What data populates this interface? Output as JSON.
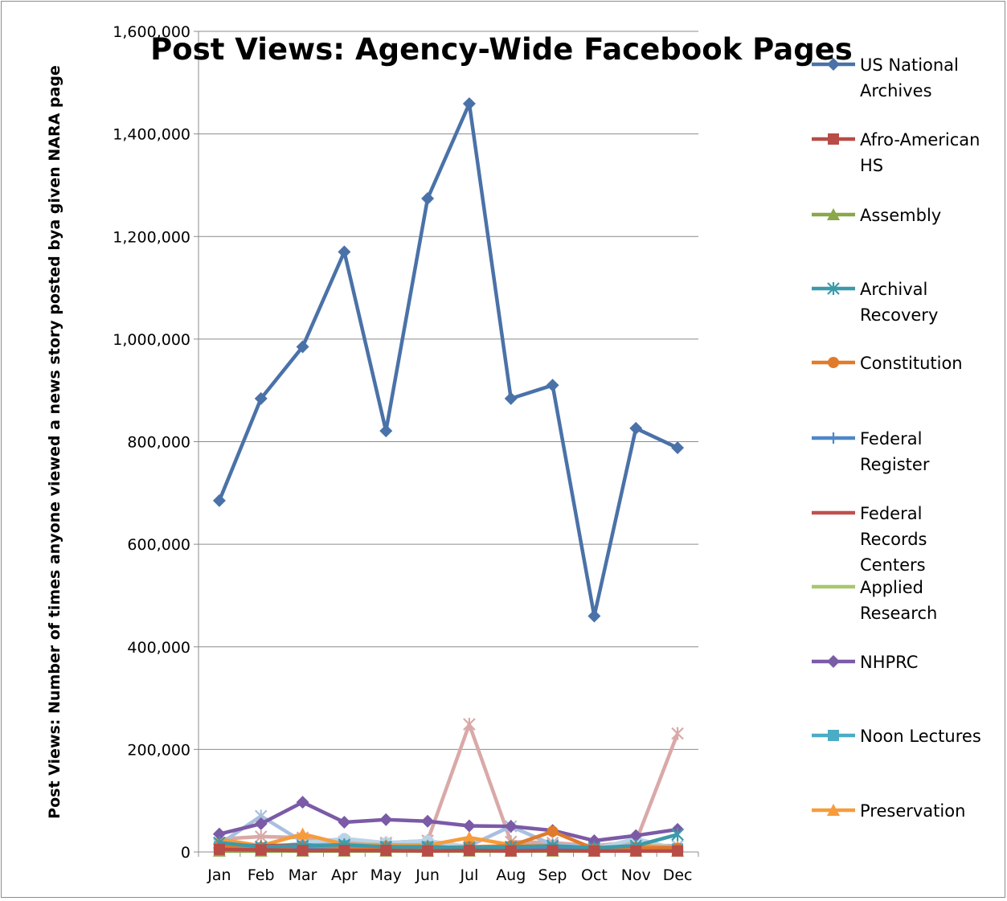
{
  "chart_data": {
    "type": "line",
    "title": "Post Views: Agency-Wide Facebook Pages",
    "ylabel": "Post Views: Number of times anyone viewed a news story posted bya given NARA page",
    "xlabel": "",
    "categories": [
      "Jan",
      "Feb",
      "Mar",
      "Apr",
      "May",
      "Jun",
      "Jul",
      "Aug",
      "Sep",
      "Oct",
      "Nov",
      "Dec"
    ],
    "ylim": [
      0,
      1600000
    ],
    "yticks": [
      0,
      200000,
      400000,
      600000,
      800000,
      1000000,
      1200000,
      1400000,
      1600000
    ],
    "ytick_labels": [
      "0",
      "200,000",
      "400,000",
      "600,000",
      "800,000",
      "1,000,000",
      "1,200,000",
      "1,400,000",
      "1,600,000"
    ],
    "grid": true,
    "legend_position": "right",
    "series": [
      {
        "name": "US National Archives",
        "color": "#4a72a8",
        "marker": "diamond",
        "values": [
          685000,
          884000,
          985000,
          1170000,
          821000,
          1274000,
          1459000,
          884000,
          910000,
          460000,
          826000,
          788000
        ]
      },
      {
        "name": "Afro-American HS",
        "color": "#b84c47",
        "marker": "square",
        "values": [
          5000,
          4000,
          3000,
          3000,
          3000,
          2000,
          3000,
          2000,
          3000,
          2000,
          2000,
          2000
        ]
      },
      {
        "name": "Assembly",
        "color": "#8aa74a",
        "marker": "triangle",
        "values": [
          2000,
          2000,
          2000,
          2000,
          2000,
          2000,
          2000,
          2000,
          2000,
          2000,
          2000,
          2000
        ]
      },
      {
        "name": "Archival Recovery",
        "color": "#3b9aaa",
        "marker": "star",
        "values": [
          18000,
          10000,
          12000,
          14000,
          10000,
          10000,
          8000,
          10000,
          12000,
          8000,
          12000,
          34000
        ]
      },
      {
        "name": "Constitution",
        "color": "#e07b2c",
        "marker": "circle",
        "values": [
          10000,
          8000,
          12000,
          10000,
          9000,
          8000,
          10000,
          12000,
          40000,
          6000,
          8000,
          6000
        ]
      },
      {
        "name": "Federal Register",
        "color": "#4f87c8",
        "marker": "plus",
        "values": [
          8000,
          6000,
          8000,
          8000,
          6000,
          5000,
          6000,
          6000,
          6000,
          5000,
          6000,
          5000
        ]
      },
      {
        "name": "Federal Records Centers",
        "color": "#c0504d",
        "marker": "none",
        "values": [
          14000,
          12000,
          14000,
          10000,
          8000,
          8000,
          9000,
          8000,
          8000,
          6000,
          8000,
          7000
        ]
      },
      {
        "name": "Applied Research",
        "color": "#a6c86b",
        "marker": "none",
        "values": [
          6000,
          5000,
          7000,
          6000,
          5000,
          5000,
          5000,
          5000,
          5000,
          4000,
          5000,
          4000
        ]
      },
      {
        "name": "NHPRC",
        "color": "#7b5aa6",
        "marker": "diamond",
        "values": [
          35000,
          55000,
          97000,
          58000,
          63000,
          60000,
          51000,
          50000,
          42000,
          22000,
          32000,
          44000
        ]
      },
      {
        "name": "Noon Lectures",
        "color": "#4bacc6",
        "marker": "square",
        "values": [
          10000,
          8000,
          10000,
          12000,
          10000,
          10000,
          8000,
          8000,
          8000,
          6000,
          8000,
          6000
        ]
      },
      {
        "name": "Preservation",
        "color": "#f69c3c",
        "marker": "triangle",
        "values": [
          25000,
          12000,
          35000,
          15000,
          14000,
          13000,
          28000,
          14000,
          12000,
          8000,
          12000,
          10000
        ]
      }
    ],
    "unlisted_series": [
      {
        "color": "#d9a9a8",
        "marker": "star",
        "values": [
          25000,
          30000,
          28000,
          20000,
          18000,
          22000,
          249000,
          20000,
          18000,
          12000,
          20000,
          231000
        ]
      },
      {
        "color": "#a9bfe0",
        "marker": "star",
        "values": [
          15000,
          70000,
          20000,
          18000,
          15000,
          15000,
          12000,
          50000,
          14000,
          10000,
          14000,
          12000
        ]
      },
      {
        "color": "#b8d4e8",
        "marker": "circle",
        "values": [
          6000,
          6000,
          18000,
          26000,
          18000,
          22000,
          10000,
          8000,
          8000,
          6000,
          26000,
          6000
        ]
      }
    ]
  }
}
